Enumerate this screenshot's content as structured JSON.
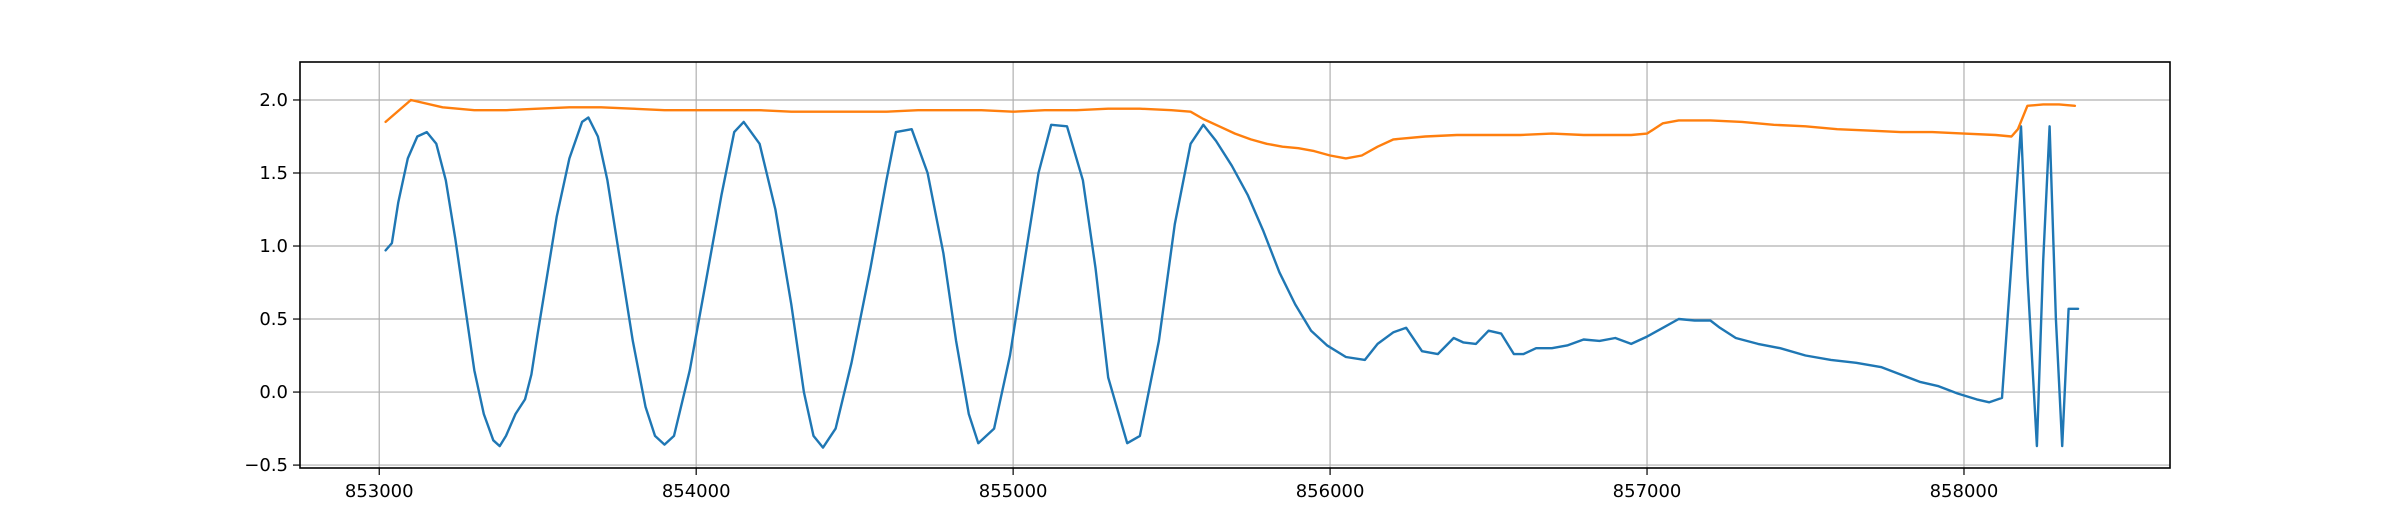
{
  "chart_data": {
    "type": "line",
    "title": "",
    "xlabel": "",
    "ylabel": "",
    "xlim": [
      852750,
      858650
    ],
    "ylim": [
      -0.52,
      2.26
    ],
    "grid": true,
    "legend": "none",
    "x_ticks": [
      853000,
      854000,
      855000,
      856000,
      857000,
      858000
    ],
    "x_tick_labels": [
      "853000",
      "854000",
      "855000",
      "856000",
      "857000",
      "858000"
    ],
    "y_ticks": [
      -0.5,
      0.0,
      0.5,
      1.0,
      1.5,
      2.0
    ],
    "y_tick_labels": [
      "−0.5",
      "0.0",
      "0.5",
      "1.0",
      "1.5",
      "2.0"
    ],
    "series": [
      {
        "color": "#1f77b4",
        "x": [
          853020,
          853040,
          853060,
          853090,
          853120,
          853150,
          853180,
          853210,
          853240,
          853270,
          853300,
          853330,
          853360,
          853380,
          853400,
          853430,
          853460,
          853480,
          853500,
          853530,
          853560,
          853600,
          853640,
          853660,
          853690,
          853720,
          853760,
          853800,
          853840,
          853870,
          853900,
          853930,
          853980,
          854030,
          854080,
          854120,
          854150,
          854200,
          854250,
          854300,
          854340,
          854370,
          854400,
          854440,
          854490,
          854550,
          854600,
          854630,
          854680,
          854730,
          854780,
          854820,
          854860,
          854890,
          854940,
          854990,
          855040,
          855080,
          855120,
          855170,
          855220,
          855260,
          855300,
          855360,
          855400,
          855460,
          855510,
          855560,
          855600,
          855640,
          855690,
          855740,
          855790,
          855840,
          855890,
          855940,
          855990,
          856050,
          856110,
          856150,
          856200,
          856240,
          856290,
          856340,
          856390,
          856420,
          856460,
          856500,
          856540,
          856580,
          856610,
          856650,
          856700,
          856750,
          856800,
          856850,
          856900,
          856950,
          857000,
          857050,
          857100,
          857150,
          857200,
          857230,
          857280,
          857350,
          857420,
          857500,
          857580,
          857660,
          857740,
          857800,
          857860,
          857920,
          857980,
          858040,
          858080,
          858120,
          858160,
          858180,
          858200,
          858230,
          858250,
          858270,
          858290,
          858310,
          858330,
          858350,
          858360
        ],
        "y": [
          0.97,
          1.02,
          1.3,
          1.6,
          1.75,
          1.78,
          1.7,
          1.45,
          1.05,
          0.6,
          0.15,
          -0.15,
          -0.33,
          -0.37,
          -0.3,
          -0.15,
          -0.05,
          0.12,
          0.4,
          0.8,
          1.2,
          1.6,
          1.85,
          1.88,
          1.75,
          1.45,
          0.9,
          0.35,
          -0.1,
          -0.3,
          -0.36,
          -0.3,
          0.15,
          0.75,
          1.35,
          1.78,
          1.85,
          1.7,
          1.25,
          0.6,
          0.0,
          -0.3,
          -0.38,
          -0.25,
          0.2,
          0.85,
          1.45,
          1.78,
          1.8,
          1.5,
          0.95,
          0.35,
          -0.15,
          -0.35,
          -0.25,
          0.25,
          0.95,
          1.5,
          1.83,
          1.82,
          1.45,
          0.85,
          0.1,
          -0.35,
          -0.3,
          0.35,
          1.15,
          1.7,
          1.83,
          1.72,
          1.55,
          1.35,
          1.1,
          0.82,
          0.6,
          0.42,
          0.32,
          0.24,
          0.22,
          0.33,
          0.41,
          0.44,
          0.28,
          0.26,
          0.37,
          0.34,
          0.33,
          0.42,
          0.4,
          0.26,
          0.26,
          0.3,
          0.3,
          0.32,
          0.36,
          0.35,
          0.37,
          0.33,
          0.38,
          0.44,
          0.5,
          0.49,
          0.49,
          0.44,
          0.37,
          0.33,
          0.3,
          0.25,
          0.22,
          0.2,
          0.17,
          0.12,
          0.07,
          0.04,
          -0.01,
          -0.05,
          -0.07,
          -0.04,
          1.2,
          1.82,
          0.8,
          -0.37,
          0.9,
          1.82,
          0.5,
          -0.37,
          0.57,
          0.57,
          0.57
        ]
      },
      {
        "color": "#ff7f0e",
        "x": [
          853020,
          853100,
          853200,
          853300,
          853400,
          853500,
          853600,
          853700,
          853800,
          853900,
          854000,
          854100,
          854200,
          854300,
          854400,
          854500,
          854600,
          854700,
          854800,
          854900,
          855000,
          855100,
          855200,
          855300,
          855400,
          855500,
          855560,
          855600,
          855650,
          855700,
          855750,
          855800,
          855850,
          855900,
          855950,
          856000,
          856050,
          856100,
          856150,
          856200,
          856300,
          856400,
          856500,
          856600,
          856700,
          856800,
          856900,
          856950,
          857000,
          857050,
          857100,
          857200,
          857300,
          857400,
          857500,
          857600,
          857700,
          857800,
          857900,
          858000,
          858100,
          858150,
          858170,
          858200,
          858250,
          858300,
          858350
        ],
        "y": [
          1.85,
          2.0,
          1.95,
          1.93,
          1.93,
          1.94,
          1.95,
          1.95,
          1.94,
          1.93,
          1.93,
          1.93,
          1.93,
          1.92,
          1.92,
          1.92,
          1.92,
          1.93,
          1.93,
          1.93,
          1.92,
          1.93,
          1.93,
          1.94,
          1.94,
          1.93,
          1.92,
          1.87,
          1.82,
          1.77,
          1.73,
          1.7,
          1.68,
          1.67,
          1.65,
          1.62,
          1.6,
          1.62,
          1.68,
          1.73,
          1.75,
          1.76,
          1.76,
          1.76,
          1.77,
          1.76,
          1.76,
          1.76,
          1.77,
          1.84,
          1.86,
          1.86,
          1.85,
          1.83,
          1.82,
          1.8,
          1.79,
          1.78,
          1.78,
          1.77,
          1.76,
          1.75,
          1.8,
          1.96,
          1.97,
          1.97,
          1.96
        ]
      }
    ]
  }
}
